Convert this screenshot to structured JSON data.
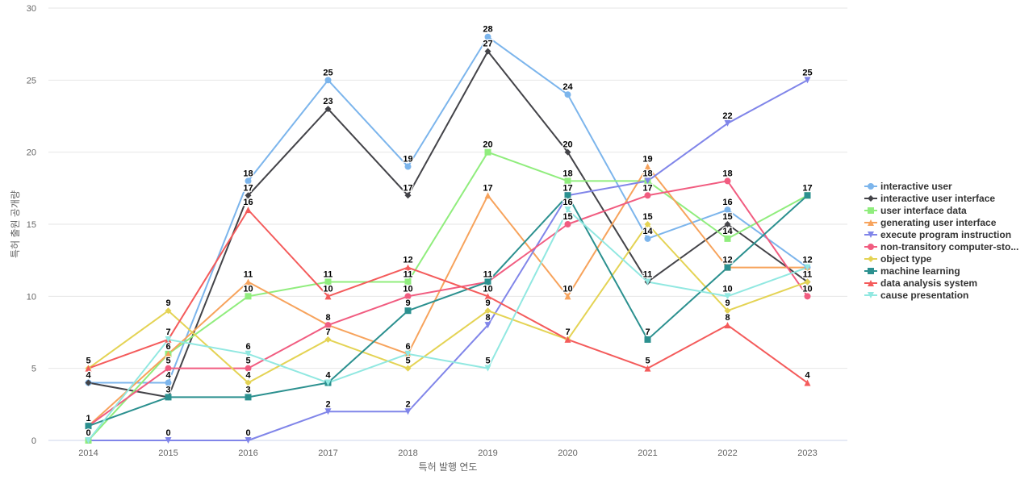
{
  "chart_data": {
    "type": "line",
    "title": "",
    "xlabel": "특허 발행 연도",
    "ylabel": "특허 출원 공개량",
    "ylim": [
      0,
      30
    ],
    "yticks": [
      0,
      5,
      10,
      15,
      20,
      25,
      30
    ],
    "grid": true,
    "legend_position": "right",
    "x": [
      "2014",
      "2015",
      "2016",
      "2017",
      "2018",
      "2019",
      "2020",
      "2021",
      "2022",
      "2023"
    ],
    "series": [
      {
        "name": "interactive user",
        "color": "#7cb5ec",
        "marker": "circle",
        "values": [
          4,
          4,
          18,
          25,
          19,
          28,
          24,
          14,
          16,
          12
        ]
      },
      {
        "name": "interactive user interface",
        "color": "#434348",
        "marker": "diamond",
        "values": [
          4,
          3,
          17,
          23,
          17,
          27,
          20,
          11,
          15,
          11
        ]
      },
      {
        "name": "user interface data",
        "color": "#90ed7d",
        "marker": "square",
        "values": [
          0,
          6,
          10,
          11,
          11,
          20,
          18,
          18,
          14,
          17
        ]
      },
      {
        "name": "generating user interface",
        "color": "#f7a35c",
        "marker": "triangle",
        "values": [
          1,
          6,
          11,
          8,
          6,
          17,
          10,
          19,
          12,
          12
        ]
      },
      {
        "name": "execute program instruction",
        "color": "#8085e9",
        "marker": "triangle-down",
        "values": [
          0,
          0,
          0,
          2,
          2,
          8,
          17,
          18,
          22,
          25
        ]
      },
      {
        "name": "non-transitory computer-sto...",
        "color": "#f15c80",
        "marker": "circle",
        "values": [
          1,
          5,
          5,
          8,
          10,
          11,
          15,
          17,
          18,
          10
        ]
      },
      {
        "name": "object type",
        "color": "#e4d354",
        "marker": "diamond",
        "values": [
          5,
          9,
          4,
          7,
          5,
          9,
          7,
          15,
          9,
          11
        ]
      },
      {
        "name": "machine learning",
        "color": "#2b908f",
        "marker": "square",
        "values": [
          1,
          3,
          3,
          4,
          9,
          11,
          17,
          7,
          12,
          17
        ]
      },
      {
        "name": "data analysis system",
        "color": "#f45b5b",
        "marker": "triangle",
        "values": [
          5,
          7,
          16,
          10,
          12,
          10,
          7,
          5,
          8,
          4
        ]
      },
      {
        "name": "cause presentation",
        "color": "#91e8e1",
        "marker": "triangle-down",
        "values": [
          0,
          7,
          6,
          4,
          6,
          5,
          16,
          11,
          10,
          12
        ]
      }
    ],
    "data_labels_shown": {
      "2014": [
        0,
        1,
        4,
        5
      ],
      "2015": [
        0,
        3,
        4,
        5,
        6,
        7,
        9
      ],
      "2016": [
        0,
        3,
        4,
        5,
        6,
        10,
        11,
        16,
        17,
        18
      ],
      "2017": [
        2,
        4,
        7,
        8,
        10,
        11,
        23,
        25
      ],
      "2018": [
        2,
        5,
        6,
        9,
        10,
        11,
        12,
        17,
        19
      ],
      "2019": [
        5,
        8,
        9,
        10,
        11,
        17,
        20,
        27,
        28
      ],
      "2020": [
        7,
        10,
        15,
        16,
        17,
        18,
        20,
        24
      ],
      "2021": [
        5,
        7,
        11,
        14,
        15,
        17,
        18,
        19
      ],
      "2022": [
        8,
        9,
        10,
        12,
        14,
        15,
        16,
        18,
        22
      ],
      "2023": [
        4,
        10,
        11,
        12,
        17,
        25
      ]
    }
  }
}
